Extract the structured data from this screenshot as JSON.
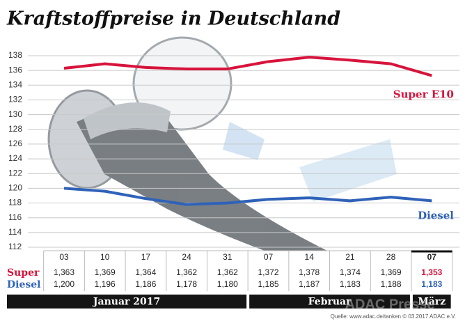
{
  "chart_data": {
    "type": "line",
    "title": "Kraftstoffpreise in Deutschland",
    "categories": [
      "03",
      "10",
      "17",
      "24",
      "31",
      "07",
      "14",
      "21",
      "28",
      "07"
    ],
    "periods": [
      "Januar 2017",
      null,
      null,
      null,
      null,
      "Februar",
      null,
      null,
      null,
      "März"
    ],
    "series": [
      {
        "name": "Super E10",
        "row_label": "Super",
        "color": "#d7143c",
        "values": [
          136.3,
          136.9,
          136.4,
          136.2,
          136.2,
          137.2,
          137.8,
          137.4,
          136.9,
          135.3
        ],
        "value_labels": [
          "1,363",
          "1,369",
          "1,364",
          "1,362",
          "1,362",
          "1,372",
          "1,378",
          "1,374",
          "1,369",
          "1,353"
        ]
      },
      {
        "name": "Diesel",
        "row_label": "Diesel",
        "color": "#2f62b8",
        "values": [
          120.0,
          119.6,
          118.6,
          117.8,
          118.0,
          118.5,
          118.7,
          118.3,
          118.8,
          118.3
        ],
        "value_labels": [
          "1,200",
          "1,196",
          "1,186",
          "1,178",
          "1,180",
          "1,185",
          "1,187",
          "1,183",
          "1,188",
          "1,183"
        ]
      }
    ],
    "ylim": [
      112,
      138
    ],
    "yticks": [
      112,
      114,
      116,
      118,
      120,
      122,
      124,
      126,
      128,
      130,
      132,
      134,
      136,
      138
    ],
    "grid": true,
    "source": "Quelle: www.adac.de/tanken  © 03.2017  ADAC e.V.",
    "watermark": "ADAC Presse"
  }
}
